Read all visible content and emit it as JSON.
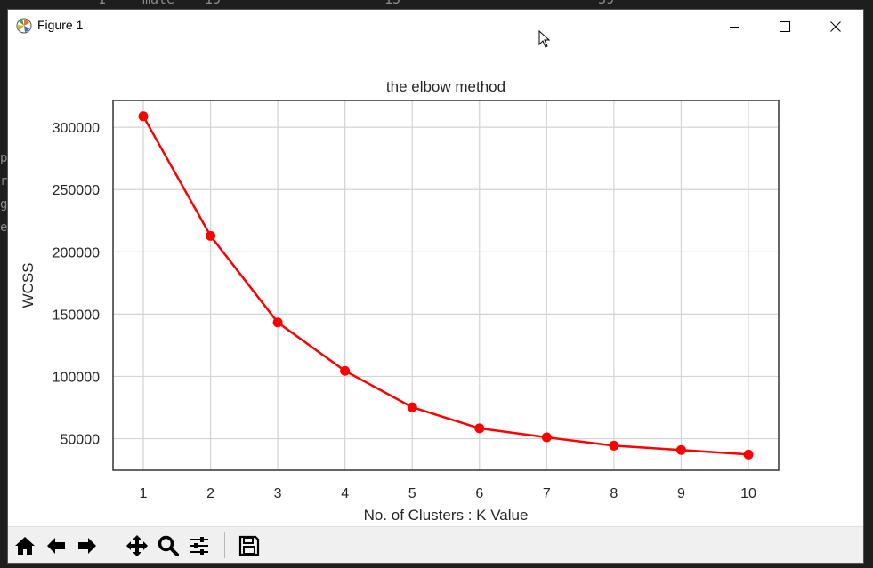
{
  "window": {
    "title": "Figure 1"
  },
  "background": {
    "top_fragments": [
      "1",
      "male",
      "19",
      "15",
      "39"
    ],
    "left_fragments": [
      "p",
      "r",
      "g",
      "e"
    ]
  },
  "toolbar": {
    "buttons": [
      {
        "name": "home-button",
        "icon": "home-icon"
      },
      {
        "name": "back-button",
        "icon": "arrow-left-icon"
      },
      {
        "name": "forward-button",
        "icon": "arrow-right-icon"
      },
      {
        "name": "pan-button",
        "icon": "move-icon"
      },
      {
        "name": "zoom-button",
        "icon": "magnifier-icon"
      },
      {
        "name": "configure-subplots-button",
        "icon": "sliders-icon"
      },
      {
        "name": "save-button",
        "icon": "floppy-disk-icon"
      }
    ]
  },
  "colors": {
    "line": "#ff0000",
    "grid": "#d3d3d3",
    "axes": "#333333"
  },
  "chart_data": {
    "type": "line",
    "title": "the elbow method",
    "xlabel": "No. of Clusters : K Value",
    "ylabel": "WCSS",
    "x": [
      1,
      2,
      3,
      4,
      5,
      6,
      7,
      8,
      9,
      10
    ],
    "x_ticks": [
      "1",
      "2",
      "3",
      "4",
      "5",
      "6",
      "7",
      "8",
      "9",
      "10"
    ],
    "y_ticks": [
      "50000",
      "100000",
      "150000",
      "200000",
      "250000",
      "300000"
    ],
    "y_tick_values": [
      50000,
      100000,
      150000,
      200000,
      250000,
      300000
    ],
    "series": [
      {
        "values": [
          308800,
          212800,
          143300,
          104400,
          75300,
          58300,
          51100,
          44400,
          40900,
          37300
        ],
        "color": "#ff0000",
        "marker": "circle"
      }
    ],
    "xlim": [
      0.55,
      10.45
    ],
    "ylim": [
      24700,
      321500
    ],
    "grid": true
  }
}
